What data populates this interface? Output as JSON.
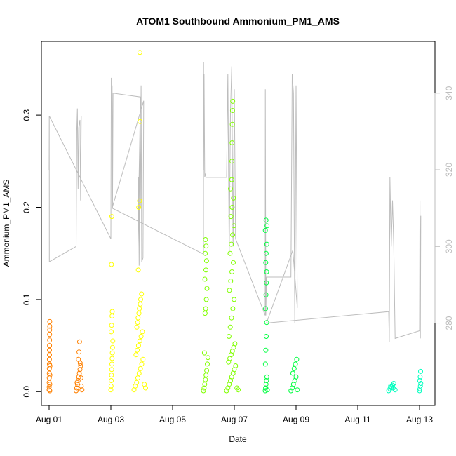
{
  "chart_data": {
    "type": "scatter",
    "title": "ATOM1 Southbound Ammonium_PM1_AMS",
    "xlabel": "Date",
    "ylabel": "Ammonium_PM1_AMS",
    "xlim": [
      "2016-07-31T18:00",
      "2016-08-13T12:00"
    ],
    "ylim": [
      -0.015,
      0.38
    ],
    "y2lim": [
      258.5,
      353.5
    ],
    "x_ticks": [
      {
        "date": "2016-08-01",
        "label": "Aug 01"
      },
      {
        "date": "2016-08-03",
        "label": "Aug 03"
      },
      {
        "date": "2016-08-05",
        "label": "Aug 05"
      },
      {
        "date": "2016-08-07",
        "label": "Aug 07"
      },
      {
        "date": "2016-08-09",
        "label": "Aug 09"
      },
      {
        "date": "2016-08-11",
        "label": "Aug 11"
      },
      {
        "date": "2016-08-13",
        "label": "Aug 13"
      }
    ],
    "y_ticks": [
      0.0,
      0.1,
      0.2,
      0.3
    ],
    "y_tick_labels": [
      "0.0",
      "0.1",
      "0.2",
      "0.3"
    ],
    "y2_ticks": [
      280,
      300,
      320,
      340
    ],
    "y2_tick_labels": [
      "280",
      "300",
      "320",
      "340"
    ],
    "grid": false,
    "series": [
      {
        "color": "#ff8000",
        "points": [
          [
            "2016-08-01T00:00",
            0.002
          ],
          [
            "2016-08-01T00:02",
            0.005
          ],
          [
            "2016-08-01T00:04",
            0.01
          ],
          [
            "2016-08-01T00:06",
            0.015
          ],
          [
            "2016-08-01T00:08",
            0.02
          ],
          [
            "2016-08-01T00:10",
            0.025
          ],
          [
            "2016-08-01T00:12",
            0.03
          ],
          [
            "2016-08-01T00:14",
            0.035
          ],
          [
            "2016-08-01T00:16",
            0.04
          ],
          [
            "2016-08-01T00:18",
            0.045
          ],
          [
            "2016-08-01T00:20",
            0.05
          ],
          [
            "2016-08-01T00:22",
            0.056
          ],
          [
            "2016-08-01T00:24",
            0.062
          ],
          [
            "2016-08-01T00:26",
            0.067
          ],
          [
            "2016-08-01T00:28",
            0.071
          ],
          [
            "2016-08-01T00:30",
            0.076
          ],
          [
            "2016-08-01T00:32",
            0.001
          ],
          [
            "2016-08-01T00:34",
            0.008
          ],
          [
            "2016-08-01T00:36",
            0.018
          ],
          [
            "2016-08-01T00:38",
            0.028
          ],
          [
            "2016-08-01T21:00",
            0.001
          ],
          [
            "2016-08-01T21:30",
            0.004
          ],
          [
            "2016-08-01T22:00",
            0.008
          ],
          [
            "2016-08-01T22:30",
            0.012
          ],
          [
            "2016-08-01T23:00",
            0.016
          ],
          [
            "2016-08-01T23:30",
            0.02
          ],
          [
            "2016-08-02T00:00",
            0.024
          ],
          [
            "2016-08-02T00:30",
            0.028
          ],
          [
            "2016-08-02T01:00",
            0.006
          ],
          [
            "2016-08-02T01:30",
            0.002
          ],
          [
            "2016-08-01T22:45",
            0.035
          ],
          [
            "2016-08-01T23:15",
            0.043
          ],
          [
            "2016-08-01T23:40",
            0.054
          ],
          [
            "2016-08-02T00:10",
            0.031
          ],
          [
            "2016-08-02T00:45",
            0.015
          ],
          [
            "2016-08-01T21:45",
            0.01
          ]
        ]
      },
      {
        "color": "#ffff00",
        "points": [
          [
            "2016-08-03T00:00",
            0.002
          ],
          [
            "2016-08-03T00:10",
            0.006
          ],
          [
            "2016-08-03T00:20",
            0.012
          ],
          [
            "2016-08-03T00:30",
            0.018
          ],
          [
            "2016-08-03T00:40",
            0.024
          ],
          [
            "2016-08-03T00:50",
            0.03
          ],
          [
            "2016-08-03T01:00",
            0.036
          ],
          [
            "2016-08-03T01:10",
            0.042
          ],
          [
            "2016-08-03T01:20",
            0.048
          ],
          [
            "2016-08-03T01:30",
            0.055
          ],
          [
            "2016-08-03T00:15",
            0.065
          ],
          [
            "2016-08-03T00:35",
            0.072
          ],
          [
            "2016-08-03T00:55",
            0.082
          ],
          [
            "2016-08-03T01:05",
            0.087
          ],
          [
            "2016-08-03T00:25",
            0.138
          ],
          [
            "2016-08-03T00:45",
            0.19
          ],
          [
            "2016-08-03T18:00",
            0.002
          ],
          [
            "2016-08-03T19:00",
            0.006
          ],
          [
            "2016-08-03T20:00",
            0.01
          ],
          [
            "2016-08-03T21:00",
            0.015
          ],
          [
            "2016-08-03T22:00",
            0.02
          ],
          [
            "2016-08-03T23:00",
            0.025
          ],
          [
            "2016-08-04T00:00",
            0.03
          ],
          [
            "2016-08-04T01:00",
            0.035
          ],
          [
            "2016-08-04T02:00",
            0.008
          ],
          [
            "2016-08-04T03:00",
            0.004
          ],
          [
            "2016-08-03T19:30",
            0.04
          ],
          [
            "2016-08-03T20:30",
            0.045
          ],
          [
            "2016-08-03T21:30",
            0.05
          ],
          [
            "2016-08-03T22:30",
            0.055
          ],
          [
            "2016-08-03T23:30",
            0.06
          ],
          [
            "2016-08-04T00:30",
            0.065
          ],
          [
            "2016-08-03T20:10",
            0.07
          ],
          [
            "2016-08-03T20:50",
            0.075
          ],
          [
            "2016-08-03T21:10",
            0.08
          ],
          [
            "2016-08-03T21:50",
            0.085
          ],
          [
            "2016-08-03T22:10",
            0.09
          ],
          [
            "2016-08-03T22:50",
            0.095
          ],
          [
            "2016-08-03T23:10",
            0.1
          ],
          [
            "2016-08-03T23:50",
            0.106
          ],
          [
            "2016-08-03T21:20",
            0.132
          ],
          [
            "2016-08-03T21:40",
            0.2
          ],
          [
            "2016-08-03T22:20",
            0.207
          ],
          [
            "2016-08-03T22:40",
            0.293
          ],
          [
            "2016-08-03T22:35",
            0.368
          ]
        ]
      },
      {
        "color": "#80ff00",
        "points": [
          [
            "2016-08-06T00:00",
            0.001
          ],
          [
            "2016-08-06T00:30",
            0.004
          ],
          [
            "2016-08-06T01:00",
            0.008
          ],
          [
            "2016-08-06T01:30",
            0.013
          ],
          [
            "2016-08-06T02:00",
            0.018
          ],
          [
            "2016-08-06T02:30",
            0.023
          ],
          [
            "2016-08-06T03:00",
            0.03
          ],
          [
            "2016-08-06T03:30",
            0.037
          ],
          [
            "2016-08-06T00:45",
            0.042
          ],
          [
            "2016-08-06T01:15",
            0.085
          ],
          [
            "2016-08-06T01:45",
            0.09
          ],
          [
            "2016-08-06T02:15",
            0.1
          ],
          [
            "2016-08-06T02:45",
            0.112
          ],
          [
            "2016-08-06T01:05",
            0.122
          ],
          [
            "2016-08-06T01:55",
            0.132
          ],
          [
            "2016-08-06T02:25",
            0.142
          ],
          [
            "2016-08-06T01:25",
            0.15
          ],
          [
            "2016-08-06T02:05",
            0.158
          ],
          [
            "2016-08-06T01:35",
            0.165
          ],
          [
            "2016-08-06T18:00",
            0.001
          ],
          [
            "2016-08-06T19:00",
            0.004
          ],
          [
            "2016-08-06T20:00",
            0.008
          ],
          [
            "2016-08-06T21:00",
            0.012
          ],
          [
            "2016-08-06T22:00",
            0.016
          ],
          [
            "2016-08-06T23:00",
            0.02
          ],
          [
            "2016-08-07T00:00",
            0.024
          ],
          [
            "2016-08-07T01:00",
            0.028
          ],
          [
            "2016-08-07T02:00",
            0.004
          ],
          [
            "2016-08-07T03:00",
            0.002
          ],
          [
            "2016-08-06T19:30",
            0.032
          ],
          [
            "2016-08-06T20:30",
            0.036
          ],
          [
            "2016-08-06T21:30",
            0.04
          ],
          [
            "2016-08-06T22:30",
            0.044
          ],
          [
            "2016-08-06T23:30",
            0.048
          ],
          [
            "2016-08-07T00:30",
            0.052
          ],
          [
            "2016-08-06T19:50",
            0.06
          ],
          [
            "2016-08-06T20:50",
            0.07
          ],
          [
            "2016-08-06T21:50",
            0.08
          ],
          [
            "2016-08-06T22:50",
            0.09
          ],
          [
            "2016-08-06T23:50",
            0.1
          ],
          [
            "2016-08-06T20:10",
            0.11
          ],
          [
            "2016-08-06T21:10",
            0.12
          ],
          [
            "2016-08-06T22:10",
            0.13
          ],
          [
            "2016-08-06T23:10",
            0.14
          ],
          [
            "2016-08-06T20:40",
            0.15
          ],
          [
            "2016-08-06T21:40",
            0.16
          ],
          [
            "2016-08-06T22:40",
            0.17
          ],
          [
            "2016-08-06T23:40",
            0.18
          ],
          [
            "2016-08-06T21:20",
            0.19
          ],
          [
            "2016-08-06T22:20",
            0.2
          ],
          [
            "2016-08-06T23:20",
            0.21
          ],
          [
            "2016-08-06T21:00",
            0.22
          ],
          [
            "2016-08-06T22:00",
            0.23
          ],
          [
            "2016-08-06T22:05",
            0.25
          ],
          [
            "2016-08-06T22:15",
            0.27
          ],
          [
            "2016-08-06T22:25",
            0.29
          ],
          [
            "2016-08-06T22:35",
            0.305
          ],
          [
            "2016-08-06T22:45",
            0.315
          ]
        ]
      },
      {
        "color": "#00ff40",
        "points": [
          [
            "2016-08-08T00:00",
            0.001
          ],
          [
            "2016-08-08T00:20",
            0.004
          ],
          [
            "2016-08-08T00:40",
            0.008
          ],
          [
            "2016-08-08T01:00",
            0.012
          ],
          [
            "2016-08-08T01:20",
            0.016
          ],
          [
            "2016-08-08T01:40",
            0.002
          ],
          [
            "2016-08-08T00:10",
            0.03
          ],
          [
            "2016-08-08T00:30",
            0.045
          ],
          [
            "2016-08-08T00:50",
            0.06
          ],
          [
            "2016-08-08T01:10",
            0.075
          ],
          [
            "2016-08-08T00:15",
            0.09
          ],
          [
            "2016-08-08T00:35",
            0.105
          ],
          [
            "2016-08-08T00:55",
            0.118
          ],
          [
            "2016-08-08T01:05",
            0.13
          ],
          [
            "2016-08-08T00:25",
            0.14
          ],
          [
            "2016-08-08T00:45",
            0.15
          ],
          [
            "2016-08-08T01:15",
            0.16
          ],
          [
            "2016-08-08T00:05",
            0.175
          ],
          [
            "2016-08-08T01:25",
            0.18
          ],
          [
            "2016-08-08T00:40",
            0.186
          ],
          [
            "2016-08-08T20:00",
            0.001
          ],
          [
            "2016-08-08T21:00",
            0.004
          ],
          [
            "2016-08-08T22:00",
            0.008
          ],
          [
            "2016-08-08T23:00",
            0.012
          ],
          [
            "2016-08-09T00:00",
            0.016
          ],
          [
            "2016-08-09T01:00",
            0.002
          ],
          [
            "2016-08-08T21:30",
            0.02
          ],
          [
            "2016-08-08T22:30",
            0.025
          ],
          [
            "2016-08-08T23:30",
            0.03
          ],
          [
            "2016-08-09T00:30",
            0.035
          ]
        ]
      },
      {
        "color": "#00ffbf",
        "points": [
          [
            "2016-08-12T00:00",
            0.001
          ],
          [
            "2016-08-12T01:00",
            0.003
          ],
          [
            "2016-08-12T02:00",
            0.005
          ],
          [
            "2016-08-12T03:00",
            0.007
          ],
          [
            "2016-08-12T04:00",
            0.009
          ],
          [
            "2016-08-12T05:00",
            0.002
          ],
          [
            "2016-08-12T01:30",
            0.006
          ],
          [
            "2016-08-12T03:30",
            0.004
          ],
          [
            "2016-08-13T00:00",
            0.001
          ],
          [
            "2016-08-13T00:20",
            0.003
          ],
          [
            "2016-08-13T00:40",
            0.006
          ],
          [
            "2016-08-13T01:00",
            0.009
          ],
          [
            "2016-08-13T00:10",
            0.012
          ],
          [
            "2016-08-13T00:30",
            0.016
          ],
          [
            "2016-08-13T00:50",
            0.022
          ]
        ]
      }
    ],
    "secondary_line": {
      "color": "#bdbdbd",
      "points": [
        [
          "2016-08-01T00:00",
          320
        ],
        [
          "2016-08-01T00:05",
          334
        ],
        [
          "2016-08-01T00:10",
          296
        ],
        [
          "2016-08-01T21:00",
          300
        ],
        [
          "2016-08-01T21:30",
          330
        ],
        [
          "2016-08-01T22:00",
          336
        ],
        [
          "2016-08-01T22:30",
          315
        ],
        [
          "2016-08-01T23:00",
          331
        ],
        [
          "2016-08-02T00:00",
          333
        ],
        [
          "2016-08-02T00:30",
          312
        ],
        [
          "2016-08-02T01:00",
          334
        ],
        [
          "2016-08-01T00:10",
          334
        ],
        [
          "2016-08-03T00:00",
          302
        ],
        [
          "2016-08-03T00:20",
          344
        ],
        [
          "2016-08-03T00:40",
          338
        ],
        [
          "2016-08-03T01:00",
          342
        ],
        [
          "2016-08-03T01:20",
          310
        ],
        [
          "2016-08-03T01:40",
          340
        ],
        [
          "2016-08-03T23:00",
          339
        ],
        [
          "2016-08-03T21:00",
          300
        ],
        [
          "2016-08-03T21:30",
          318
        ],
        [
          "2016-08-03T22:00",
          295
        ],
        [
          "2016-08-03T22:30",
          330
        ],
        [
          "2016-08-03T23:00",
          310
        ],
        [
          "2016-08-03T23:30",
          342
        ],
        [
          "2016-08-04T00:00",
          296
        ],
        [
          "2016-08-04T01:00",
          297
        ],
        [
          "2016-08-04T01:30",
          338
        ],
        [
          "2016-08-03T01:00",
          310
        ],
        [
          "2016-08-06T00:00",
          298
        ],
        [
          "2016-08-06T00:05",
          348
        ],
        [
          "2016-08-06T00:10",
          320
        ],
        [
          "2016-08-06T00:30",
          345
        ],
        [
          "2016-08-06T01:00",
          318
        ],
        [
          "2016-08-06T01:30",
          319
        ],
        [
          "2016-08-06T02:00",
          318
        ],
        [
          "2016-08-06T18:00",
          318
        ],
        [
          "2016-08-06T19:00",
          345
        ],
        [
          "2016-08-06T20:00",
          298
        ],
        [
          "2016-08-06T21:00",
          335
        ],
        [
          "2016-08-06T22:00",
          347
        ],
        [
          "2016-08-06T23:00",
          300
        ],
        [
          "2016-08-07T00:00",
          341
        ],
        [
          "2016-08-07T01:00",
          302
        ],
        [
          "2016-08-08T00:00",
          282
        ],
        [
          "2016-08-08T00:05",
          341
        ],
        [
          "2016-08-08T00:30",
          282
        ],
        [
          "2016-08-08T01:00",
          292
        ],
        [
          "2016-08-08T20:00",
          292
        ],
        [
          "2016-08-08T21:00",
          345
        ],
        [
          "2016-08-08T22:00",
          340
        ],
        [
          "2016-08-08T23:00",
          280
        ],
        [
          "2016-08-09T00:00",
          342
        ],
        [
          "2016-08-09T01:00",
          284
        ],
        [
          "2016-08-08T21:30",
          299
        ],
        [
          "2016-08-08T01:00",
          280
        ],
        [
          "2016-08-12T00:00",
          283
        ],
        [
          "2016-08-12T00:30",
          275
        ],
        [
          "2016-08-12T01:00",
          318
        ],
        [
          "2016-08-12T02:00",
          300
        ],
        [
          "2016-08-12T03:00",
          312
        ],
        [
          "2016-08-12T04:00",
          300
        ],
        [
          "2016-08-12T05:00",
          276
        ],
        [
          "2016-08-13T00:00",
          278
        ],
        [
          "2016-08-13T00:20",
          312
        ],
        [
          "2016-08-13T00:40",
          276
        ],
        [
          "2016-08-13T01:00",
          308
        ]
      ]
    }
  }
}
